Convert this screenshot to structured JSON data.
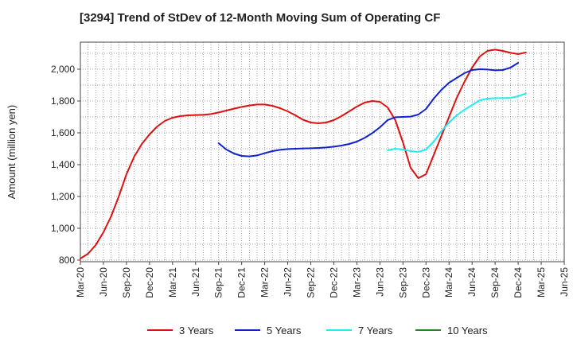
{
  "chart_data": {
    "type": "line",
    "title": "[3294]  Trend of StDev of 12-Month Moving Sum of Operating CF",
    "xlabel": "",
    "ylabel": "Amount (million yen)",
    "ylim": [
      790,
      2170
    ],
    "yticks": [
      800,
      1000,
      1200,
      1400,
      1600,
      1800,
      2000
    ],
    "ytick_labels": [
      "800",
      "1,000",
      "1,200",
      "1,400",
      "1,600",
      "1,800",
      "2,000"
    ],
    "xticks": [
      "Mar-20",
      "Jun-20",
      "Sep-20",
      "Dec-20",
      "Mar-21",
      "Jun-21",
      "Sep-21",
      "Dec-21",
      "Mar-22",
      "Jun-22",
      "Sep-22",
      "Dec-22",
      "Mar-23",
      "Jun-23",
      "Sep-23",
      "Dec-23",
      "Mar-24",
      "Jun-24",
      "Sep-24",
      "Dec-24",
      "Mar-25",
      "Jun-25"
    ],
    "x_start": "Mar-20",
    "grid": true,
    "legend_position": "bottom",
    "series": [
      {
        "name": "3 Years",
        "color": "#dd1111",
        "start_index": 0,
        "values": [
          810,
          840,
          895,
          975,
          1075,
          1200,
          1340,
          1450,
          1530,
          1590,
          1640,
          1675,
          1695,
          1705,
          1710,
          1712,
          1713,
          1718,
          1728,
          1740,
          1752,
          1763,
          1772,
          1778,
          1778,
          1770,
          1755,
          1735,
          1710,
          1682,
          1665,
          1660,
          1665,
          1680,
          1705,
          1735,
          1765,
          1790,
          1800,
          1795,
          1760,
          1680,
          1540,
          1380,
          1315,
          1340,
          1460,
          1580,
          1700,
          1820,
          1920,
          2010,
          2080,
          2115,
          2123,
          2115,
          2103,
          2095,
          2105
        ]
      },
      {
        "name": "5 Years",
        "color": "#1122cc",
        "start_index": 18,
        "values": [
          1535,
          1495,
          1470,
          1455,
          1452,
          1458,
          1472,
          1485,
          1493,
          1498,
          1500,
          1502,
          1503,
          1505,
          1508,
          1513,
          1520,
          1530,
          1545,
          1568,
          1598,
          1635,
          1680,
          1698,
          1700,
          1702,
          1715,
          1750,
          1815,
          1870,
          1915,
          1945,
          1975,
          1995,
          2000,
          1998,
          1993,
          1995,
          2010,
          2040
        ]
      },
      {
        "name": "7 Years",
        "color": "#22eeee",
        "start_index": 40,
        "values": [
          1490,
          1500,
          1495,
          1485,
          1480,
          1495,
          1545,
          1610,
          1665,
          1710,
          1745,
          1775,
          1805,
          1815,
          1818,
          1818,
          1820,
          1830,
          1848
        ]
      },
      {
        "name": "10 Years",
        "color": "#228822",
        "start_index": 0,
        "values": []
      }
    ]
  }
}
